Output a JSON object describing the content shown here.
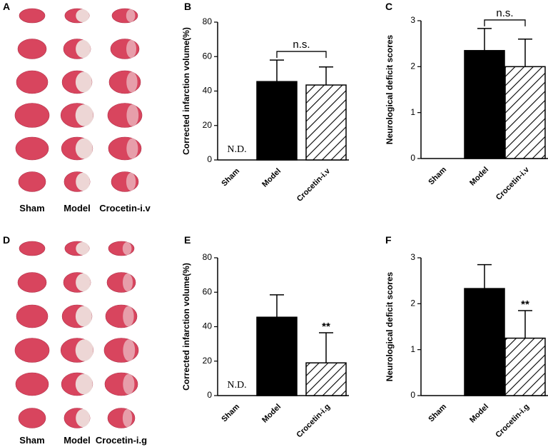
{
  "image_panels": [
    {
      "letter": "A",
      "labels": [
        "Sham",
        "Model",
        "Crocetin-i.v"
      ]
    },
    {
      "letter": "D",
      "labels": [
        "Sham",
        "Model",
        "Crocetin-i.g"
      ]
    }
  ],
  "chart_data": [
    {
      "type": "bar",
      "letter": "B",
      "y_label": "Corrected infarction volume(%)",
      "categories": [
        "Sham",
        "Model",
        "Crocetin-i.v"
      ],
      "values": [
        0,
        45.5,
        43.5
      ],
      "errors": [
        null,
        12.5,
        10.5
      ],
      "hatched": [
        false,
        false,
        true
      ],
      "color": "#000000",
      "ylim": [
        0,
        80
      ],
      "yticks": [
        0,
        20,
        40,
        60,
        80
      ],
      "nd_label": "N.D.",
      "bracket_label": "n.s."
    },
    {
      "type": "bar",
      "letter": "C",
      "y_label": "Neurological deficit scores",
      "categories": [
        "Sham",
        "Model",
        "Crocetin-i.v"
      ],
      "values": [
        0,
        2.35,
        2.0
      ],
      "errors": [
        null,
        0.48,
        0.6
      ],
      "hatched": [
        false,
        false,
        true
      ],
      "color": "#000000",
      "ylim": [
        0,
        3
      ],
      "yticks": [
        0,
        1,
        2,
        3
      ],
      "bracket_label": "n.s."
    },
    {
      "type": "bar",
      "letter": "E",
      "y_label": "Corrected infarction volume(%)",
      "categories": [
        "Sham",
        "Model",
        "Crocetin-i.g"
      ],
      "values": [
        0,
        45.5,
        19
      ],
      "errors": [
        null,
        13,
        17.5
      ],
      "hatched": [
        false,
        false,
        true
      ],
      "color": "#000000",
      "ylim": [
        0,
        80
      ],
      "yticks": [
        0,
        20,
        40,
        60,
        80
      ],
      "nd_label": "N.D.",
      "star_label": "**"
    },
    {
      "type": "bar",
      "letter": "F",
      "y_label": "Neurological deficit scores",
      "categories": [
        "Sham",
        "Model",
        "Crocetin-i.g"
      ],
      "values": [
        0,
        2.33,
        1.25
      ],
      "errors": [
        null,
        0.52,
        0.6
      ],
      "hatched": [
        false,
        false,
        true
      ],
      "color": "#000000",
      "ylim": [
        0,
        3
      ],
      "yticks": [
        0,
        1,
        2,
        3
      ],
      "star_label": "**"
    }
  ]
}
